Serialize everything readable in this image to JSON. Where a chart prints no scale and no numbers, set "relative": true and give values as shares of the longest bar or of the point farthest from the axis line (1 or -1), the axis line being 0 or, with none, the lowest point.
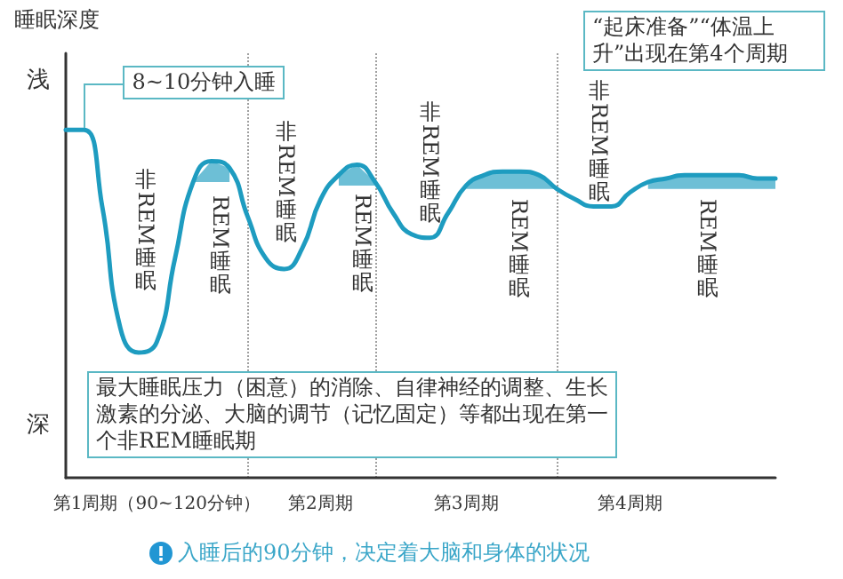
{
  "chart_data": {
    "type": "line",
    "relative": true,
    "ylabel": "睡眠深度",
    "marker": "none",
    "line_style": "solid",
    "categories": [
      null,
      null,
      null,
      null,
      null,
      "第1周期（90~120分钟）",
      null,
      null,
      null,
      null,
      null,
      null,
      null,
      null,
      "第2周期",
      null,
      null,
      null,
      null,
      null,
      null,
      null,
      "第3周期",
      null,
      null,
      null,
      null,
      null,
      null,
      null,
      null,
      "第4周期",
      null,
      null,
      null,
      null,
      null,
      null,
      null,
      null
    ],
    "series": [
      {
        "color": "#1e9cc0",
        "values": [
          1.0,
          1.0,
          0.78,
          0.43,
          0.36,
          0.39,
          0.63,
          0.85,
          0.91,
          0.89,
          0.75,
          0.63,
          0.6,
          0.66,
          0.8,
          0.87,
          0.9,
          0.85,
          0.76,
          0.7,
          0.69,
          0.76,
          0.84,
          0.87,
          0.88,
          0.88,
          0.87,
          0.83,
          0.8,
          0.78,
          0.78,
          0.82,
          0.85,
          0.86,
          0.87,
          0.87,
          0.87,
          0.87,
          0.86,
          0.86
        ],
        "lower": [
          null,
          null,
          null,
          null,
          null,
          null,
          null,
          0.85,
          0.85,
          0.85,
          null,
          null,
          null,
          null,
          null,
          0.84,
          0.84,
          0.84,
          null,
          null,
          null,
          null,
          0.83,
          0.83,
          0.83,
          0.83,
          0.83,
          0.83,
          null,
          null,
          null,
          null,
          0.83,
          0.83,
          0.83,
          0.83,
          0.83,
          0.83,
          0.83,
          0.83
        ],
        "upper": [
          null,
          null,
          null,
          null,
          null,
          null,
          null,
          0.85,
          0.91,
          0.89,
          null,
          null,
          null,
          null,
          null,
          0.87,
          0.9,
          0.85,
          null,
          null,
          null,
          null,
          0.84,
          0.87,
          0.88,
          0.88,
          0.87,
          0.83,
          null,
          null,
          null,
          null,
          0.85,
          0.86,
          0.87,
          0.87,
          0.87,
          0.87,
          0.86,
          0.86
        ]
      }
    ],
    "grid": "x",
    "annotations": [
      "8~10分钟入睡",
      "“起床准备”“体温上升”出现在第4个周期",
      "最大睡眠压力（困意）的消除、自律神经的调整、生长激素的分泌、大脑的调节（记忆固定）等都出现在第一个非REM睡眠期",
      "浅",
      "深",
      "非REM睡眠",
      "REM睡眠",
      "非REM睡眠",
      "REM睡眠",
      "非REM睡眠",
      "REM睡眠",
      "非REM睡眠",
      "REM睡眠",
      "入睡后的90分钟，决定着大脑和身体的状况"
    ]
  }
}
